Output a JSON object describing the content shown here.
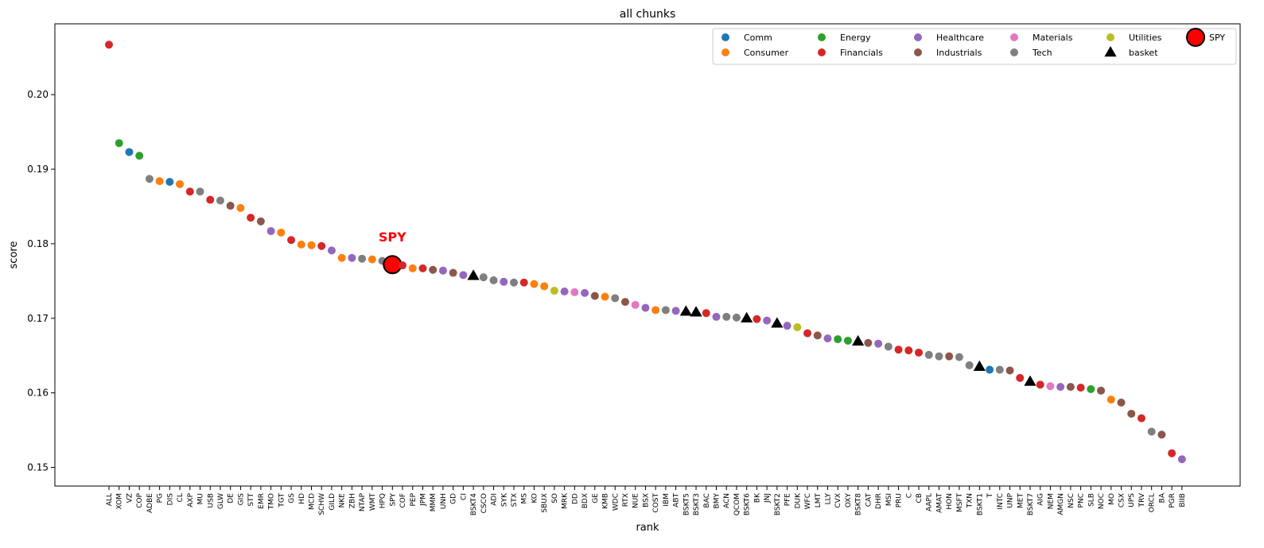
{
  "chart_data": {
    "type": "scatter",
    "title": "all chunks",
    "xlabel": "rank",
    "ylabel": "score",
    "ylim": [
      0.1475,
      0.2095
    ],
    "yticks": [
      0.15,
      0.16,
      0.17,
      0.18,
      0.19,
      0.2
    ],
    "grid": false,
    "legend_position": "top-right",
    "highlight": {
      "label": "SPY",
      "color": "#ff0000"
    },
    "legend": [
      {
        "label": "Comm",
        "marker": "circle",
        "color": "#1f77b4"
      },
      {
        "label": "Consumer",
        "marker": "circle",
        "color": "#ff7f0e"
      },
      {
        "label": "Energy",
        "marker": "circle",
        "color": "#2ca02c"
      },
      {
        "label": "Financials",
        "marker": "circle",
        "color": "#d62728"
      },
      {
        "label": "Healthcare",
        "marker": "circle",
        "color": "#9467bd"
      },
      {
        "label": "Industrials",
        "marker": "circle",
        "color": "#8c564b"
      },
      {
        "label": "Materials",
        "marker": "circle",
        "color": "#e377c2"
      },
      {
        "label": "Tech",
        "marker": "circle",
        "color": "#7f7f7f"
      },
      {
        "label": "Utilities",
        "marker": "circle",
        "color": "#bcbd22"
      },
      {
        "label": "basket",
        "marker": "triangle",
        "color": "#000000"
      },
      {
        "label": "SPY",
        "marker": "big-circle",
        "color": "#ff0000"
      }
    ],
    "points": [
      {
        "label": "ALL",
        "score": 0.2067,
        "group": "Financials"
      },
      {
        "label": "XOM",
        "score": 0.1935,
        "group": "Energy"
      },
      {
        "label": "VZ",
        "score": 0.1923,
        "group": "Comm"
      },
      {
        "label": "COP",
        "score": 0.1918,
        "group": "Energy"
      },
      {
        "label": "ADBE",
        "score": 0.1887,
        "group": "Tech"
      },
      {
        "label": "PG",
        "score": 0.1884,
        "group": "Consumer"
      },
      {
        "label": "DIS",
        "score": 0.1883,
        "group": "Comm"
      },
      {
        "label": "CL",
        "score": 0.188,
        "group": "Consumer"
      },
      {
        "label": "AXP",
        "score": 0.187,
        "group": "Financials"
      },
      {
        "label": "MU",
        "score": 0.187,
        "group": "Tech"
      },
      {
        "label": "USB",
        "score": 0.1859,
        "group": "Financials"
      },
      {
        "label": "GLW",
        "score": 0.1858,
        "group": "Tech"
      },
      {
        "label": "DE",
        "score": 0.1851,
        "group": "Industrials"
      },
      {
        "label": "GIS",
        "score": 0.1848,
        "group": "Consumer"
      },
      {
        "label": "STT",
        "score": 0.1835,
        "group": "Financials"
      },
      {
        "label": "EMR",
        "score": 0.183,
        "group": "Industrials"
      },
      {
        "label": "TMO",
        "score": 0.1817,
        "group": "Healthcare"
      },
      {
        "label": "TGT",
        "score": 0.1815,
        "group": "Consumer"
      },
      {
        "label": "GS",
        "score": 0.1805,
        "group": "Financials"
      },
      {
        "label": "HD",
        "score": 0.1799,
        "group": "Consumer"
      },
      {
        "label": "MCD",
        "score": 0.1798,
        "group": "Consumer"
      },
      {
        "label": "SCHW",
        "score": 0.1797,
        "group": "Financials"
      },
      {
        "label": "GILD",
        "score": 0.1791,
        "group": "Healthcare"
      },
      {
        "label": "NKE",
        "score": 0.1781,
        "group": "Consumer"
      },
      {
        "label": "ZBH",
        "score": 0.1781,
        "group": "Healthcare"
      },
      {
        "label": "NTAP",
        "score": 0.178,
        "group": "Tech"
      },
      {
        "label": "WMT",
        "score": 0.1779,
        "group": "Consumer"
      },
      {
        "label": "HPQ",
        "score": 0.1777,
        "group": "Tech"
      },
      {
        "label": "SPY",
        "score": 0.1772,
        "group": "SPY"
      },
      {
        "label": "COF",
        "score": 0.1771,
        "group": "Financials"
      },
      {
        "label": "PEP",
        "score": 0.1767,
        "group": "Consumer"
      },
      {
        "label": "JPM",
        "score": 0.1767,
        "group": "Financials"
      },
      {
        "label": "MMM",
        "score": 0.1765,
        "group": "Industrials"
      },
      {
        "label": "UNH",
        "score": 0.1764,
        "group": "Healthcare"
      },
      {
        "label": "GD",
        "score": 0.1761,
        "group": "Industrials"
      },
      {
        "label": "CI",
        "score": 0.1758,
        "group": "Healthcare"
      },
      {
        "label": "BSKT4",
        "score": 0.1757,
        "group": "basket"
      },
      {
        "label": "CSCO",
        "score": 0.1755,
        "group": "Tech"
      },
      {
        "label": "ADI",
        "score": 0.1751,
        "group": "Tech"
      },
      {
        "label": "SYK",
        "score": 0.1749,
        "group": "Healthcare"
      },
      {
        "label": "STX",
        "score": 0.1748,
        "group": "Tech"
      },
      {
        "label": "MS",
        "score": 0.1748,
        "group": "Financials"
      },
      {
        "label": "KO",
        "score": 0.1746,
        "group": "Consumer"
      },
      {
        "label": "SBUX",
        "score": 0.1743,
        "group": "Consumer"
      },
      {
        "label": "SO",
        "score": 0.1737,
        "group": "Utilities"
      },
      {
        "label": "MRK",
        "score": 0.1736,
        "group": "Healthcare"
      },
      {
        "label": "DD",
        "score": 0.1735,
        "group": "Materials"
      },
      {
        "label": "BDX",
        "score": 0.1734,
        "group": "Healthcare"
      },
      {
        "label": "GE",
        "score": 0.173,
        "group": "Industrials"
      },
      {
        "label": "KMB",
        "score": 0.1729,
        "group": "Consumer"
      },
      {
        "label": "WDC",
        "score": 0.1727,
        "group": "Tech"
      },
      {
        "label": "RTX",
        "score": 0.1722,
        "group": "Industrials"
      },
      {
        "label": "NUE",
        "score": 0.1718,
        "group": "Materials"
      },
      {
        "label": "BSX",
        "score": 0.1714,
        "group": "Healthcare"
      },
      {
        "label": "COST",
        "score": 0.1711,
        "group": "Consumer"
      },
      {
        "label": "IBM",
        "score": 0.1711,
        "group": "Tech"
      },
      {
        "label": "ABT",
        "score": 0.171,
        "group": "Healthcare"
      },
      {
        "label": "BSKT5",
        "score": 0.1709,
        "group": "basket"
      },
      {
        "label": "BSKT3",
        "score": 0.1708,
        "group": "basket"
      },
      {
        "label": "BAC",
        "score": 0.1707,
        "group": "Financials"
      },
      {
        "label": "BMY",
        "score": 0.1702,
        "group": "Healthcare"
      },
      {
        "label": "ACN",
        "score": 0.1702,
        "group": "Tech"
      },
      {
        "label": "QCOM",
        "score": 0.1701,
        "group": "Tech"
      },
      {
        "label": "BSKT6",
        "score": 0.17,
        "group": "basket"
      },
      {
        "label": "BK",
        "score": 0.1699,
        "group": "Financials"
      },
      {
        "label": "JNJ",
        "score": 0.1697,
        "group": "Healthcare"
      },
      {
        "label": "BSKT2",
        "score": 0.1693,
        "group": "basket"
      },
      {
        "label": "PFE",
        "score": 0.169,
        "group": "Healthcare"
      },
      {
        "label": "DUK",
        "score": 0.1688,
        "group": "Utilities"
      },
      {
        "label": "WFC",
        "score": 0.168,
        "group": "Financials"
      },
      {
        "label": "LMT",
        "score": 0.1677,
        "group": "Industrials"
      },
      {
        "label": "LLY",
        "score": 0.1673,
        "group": "Healthcare"
      },
      {
        "label": "CVX",
        "score": 0.1672,
        "group": "Energy"
      },
      {
        "label": "OXY",
        "score": 0.167,
        "group": "Energy"
      },
      {
        "label": "BSKT8",
        "score": 0.1669,
        "group": "basket"
      },
      {
        "label": "CAT",
        "score": 0.1667,
        "group": "Industrials"
      },
      {
        "label": "DHR",
        "score": 0.1666,
        "group": "Healthcare"
      },
      {
        "label": "MSI",
        "score": 0.1662,
        "group": "Tech"
      },
      {
        "label": "PRU",
        "score": 0.1658,
        "group": "Financials"
      },
      {
        "label": "C",
        "score": 0.1657,
        "group": "Financials"
      },
      {
        "label": "CB",
        "score": 0.1654,
        "group": "Financials"
      },
      {
        "label": "AAPL",
        "score": 0.1651,
        "group": "Tech"
      },
      {
        "label": "AMAT",
        "score": 0.1649,
        "group": "Tech"
      },
      {
        "label": "HON",
        "score": 0.1649,
        "group": "Industrials"
      },
      {
        "label": "MSFT",
        "score": 0.1648,
        "group": "Tech"
      },
      {
        "label": "TXN",
        "score": 0.1637,
        "group": "Tech"
      },
      {
        "label": "BSKT1",
        "score": 0.1635,
        "group": "basket"
      },
      {
        "label": "T",
        "score": 0.1631,
        "group": "Comm"
      },
      {
        "label": "INTC",
        "score": 0.1631,
        "group": "Tech"
      },
      {
        "label": "UNP",
        "score": 0.163,
        "group": "Industrials"
      },
      {
        "label": "MET",
        "score": 0.162,
        "group": "Financials"
      },
      {
        "label": "BSKT7",
        "score": 0.1615,
        "group": "basket"
      },
      {
        "label": "AIG",
        "score": 0.1611,
        "group": "Financials"
      },
      {
        "label": "NEM",
        "score": 0.1609,
        "group": "Materials"
      },
      {
        "label": "AMGN",
        "score": 0.1608,
        "group": "Healthcare"
      },
      {
        "label": "NSC",
        "score": 0.1608,
        "group": "Industrials"
      },
      {
        "label": "PNC",
        "score": 0.1607,
        "group": "Financials"
      },
      {
        "label": "SLB",
        "score": 0.1605,
        "group": "Energy"
      },
      {
        "label": "NOC",
        "score": 0.1603,
        "group": "Industrials"
      },
      {
        "label": "MO",
        "score": 0.1591,
        "group": "Consumer"
      },
      {
        "label": "CSX",
        "score": 0.1587,
        "group": "Industrials"
      },
      {
        "label": "UPS",
        "score": 0.1572,
        "group": "Industrials"
      },
      {
        "label": "TRV",
        "score": 0.1566,
        "group": "Financials"
      },
      {
        "label": "ORCL",
        "score": 0.1548,
        "group": "Tech"
      },
      {
        "label": "BA",
        "score": 0.1544,
        "group": "Industrials"
      },
      {
        "label": "PGR",
        "score": 0.1519,
        "group": "Financials"
      },
      {
        "label": "BIIB",
        "score": 0.1511,
        "group": "Healthcare"
      }
    ]
  }
}
